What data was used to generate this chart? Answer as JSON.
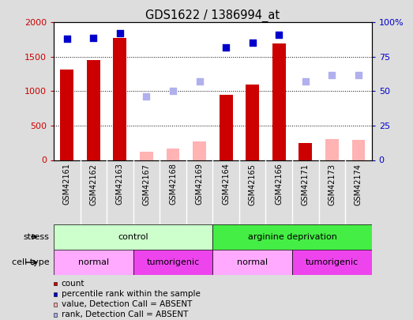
{
  "title": "GDS1622 / 1386994_at",
  "samples": [
    "GSM42161",
    "GSM42162",
    "GSM42163",
    "GSM42167",
    "GSM42168",
    "GSM42169",
    "GSM42164",
    "GSM42165",
    "GSM42166",
    "GSM42171",
    "GSM42173",
    "GSM42174"
  ],
  "bar_values": [
    1310,
    1450,
    1780,
    null,
    null,
    null,
    950,
    1095,
    1690,
    250,
    null,
    null
  ],
  "bar_absent_values": [
    null,
    null,
    null,
    120,
    170,
    270,
    null,
    null,
    null,
    null,
    300,
    295
  ],
  "rank_values": [
    88,
    89,
    92,
    null,
    null,
    null,
    82,
    85,
    91,
    null,
    null,
    null
  ],
  "rank_absent_values": [
    null,
    null,
    null,
    46,
    50,
    57,
    null,
    null,
    null,
    57,
    62,
    62
  ],
  "bar_color": "#cc0000",
  "bar_absent_color": "#ffb3b3",
  "rank_color": "#0000cc",
  "rank_absent_color": "#b0b0ee",
  "ylim_left": [
    0,
    2000
  ],
  "ylim_right": [
    0,
    100
  ],
  "yticks_left": [
    0,
    500,
    1000,
    1500,
    2000
  ],
  "yticks_right": [
    0,
    25,
    50,
    75,
    100
  ],
  "ytick_labels_right": [
    "0",
    "25",
    "50",
    "75",
    "100%"
  ],
  "stress_groups": [
    {
      "label": "control",
      "start": 0,
      "end": 5,
      "color": "#ccffcc"
    },
    {
      "label": "arginine deprivation",
      "start": 6,
      "end": 11,
      "color": "#44ee44"
    }
  ],
  "celltype_groups": [
    {
      "label": "normal",
      "start": 0,
      "end": 2,
      "color": "#ffaaff"
    },
    {
      "label": "tumorigenic",
      "start": 3,
      "end": 5,
      "color": "#ee44ee"
    },
    {
      "label": "normal",
      "start": 6,
      "end": 8,
      "color": "#ffaaff"
    },
    {
      "label": "tumorigenic",
      "start": 9,
      "end": 11,
      "color": "#ee44ee"
    }
  ],
  "legend_items": [
    {
      "label": "count",
      "color": "#cc0000"
    },
    {
      "label": "percentile rank within the sample",
      "color": "#0000cc"
    },
    {
      "label": "value, Detection Call = ABSENT",
      "color": "#ffb3b3"
    },
    {
      "label": "rank, Detection Call = ABSENT",
      "color": "#b0b0ee"
    }
  ],
  "bg_color": "#dddddd",
  "plot_bg_color": "#ffffff",
  "bar_width": 0.5
}
